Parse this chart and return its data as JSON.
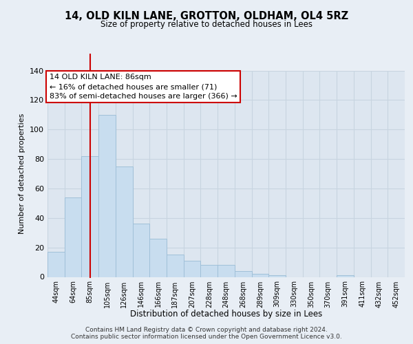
{
  "title": "14, OLD KILN LANE, GROTTON, OLDHAM, OL4 5RZ",
  "subtitle": "Size of property relative to detached houses in Lees",
  "xlabel": "Distribution of detached houses by size in Lees",
  "ylabel": "Number of detached properties",
  "bar_values": [
    17,
    54,
    82,
    110,
    75,
    36,
    26,
    15,
    11,
    8,
    8,
    4,
    2,
    1,
    0,
    0,
    0,
    1
  ],
  "bar_color": "#c8ddef",
  "bar_edge_color": "#a0c0d8",
  "vline_color": "#cc0000",
  "ylim": [
    0,
    140
  ],
  "yticks": [
    0,
    20,
    40,
    60,
    80,
    100,
    120,
    140
  ],
  "annotation_title": "14 OLD KILN LANE: 86sqm",
  "annotation_line1": "← 16% of detached houses are smaller (71)",
  "annotation_line2": "83% of semi-detached houses are larger (366) →",
  "footer1": "Contains HM Land Registry data © Crown copyright and database right 2024.",
  "footer2": "Contains public sector information licensed under the Open Government Licence v3.0.",
  "background_color": "#e8eef5",
  "plot_background": "#dde6f0",
  "grid_color": "#c8d4e0",
  "all_labels": [
    "44sqm",
    "64sqm",
    "85sqm",
    "105sqm",
    "126sqm",
    "146sqm",
    "166sqm",
    "187sqm",
    "207sqm",
    "228sqm",
    "248sqm",
    "268sqm",
    "289sqm",
    "309sqm",
    "330sqm",
    "350sqm",
    "370sqm",
    "391sqm",
    "411sqm",
    "432sqm",
    "452sqm"
  ],
  "vline_bar_index": 2
}
